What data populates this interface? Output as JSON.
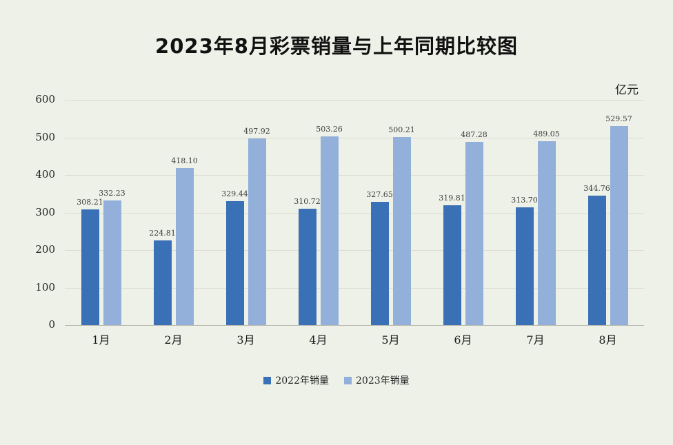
{
  "page": {
    "title": "2023年8月彩票销量与上年同期比较图",
    "unit_label": "亿元"
  },
  "chart_data": {
    "type": "bar",
    "title": "2023年8月彩票销量与上年同期比较图",
    "ylabel_unit": "亿元",
    "categories": [
      "1月",
      "2月",
      "3月",
      "4月",
      "5月",
      "6月",
      "7月",
      "8月"
    ],
    "series": [
      {
        "name": "2022年销量",
        "color": "#3a70b5",
        "values": [
          308.21,
          224.81,
          329.44,
          310.72,
          327.65,
          319.81,
          313.7,
          344.76
        ]
      },
      {
        "name": "2023年销量",
        "color": "#92b0da",
        "values": [
          332.23,
          418.1,
          497.92,
          503.26,
          500.21,
          487.28,
          489.05,
          529.57
        ]
      }
    ],
    "ylim": [
      0,
      600
    ],
    "yticks": [
      0,
      100,
      200,
      300,
      400,
      500,
      600
    ],
    "grid": true,
    "legend_position": "bottom"
  }
}
